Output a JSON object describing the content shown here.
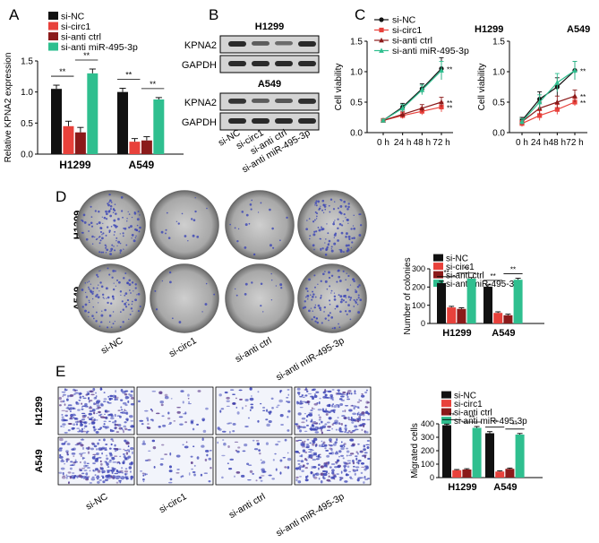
{
  "panel_labels": {
    "a": "A",
    "b": "B",
    "c": "C",
    "d": "D",
    "e": "E"
  },
  "significance": "**",
  "colors": {
    "si_nc": "#111111",
    "si_circ1": "#e8413b",
    "si_anti_ctrl": "#8b1a1a",
    "si_anti_mir": "#2fbf8f",
    "plate": "#9c9c9c",
    "plate_dark": "#6a6a6a",
    "blot_band": "#2a2a2a",
    "blot_bg": "#d4d4d4",
    "stain": "#3a43b5"
  },
  "legend": [
    "si-NC",
    "si-circ1",
    "si-anti ctrl",
    "si-anti miR-495-3p"
  ],
  "western": {
    "groups": [
      {
        "cell": "H1299",
        "rows": [
          "KPNA2",
          "GAPDH"
        ]
      },
      {
        "cell": "A549",
        "rows": [
          "KPNA2",
          "GAPDH"
        ]
      }
    ],
    "lanes": [
      "si-NC",
      "si-circ1",
      "si-anti ctrl",
      "si-anti miR-495-3p"
    ]
  },
  "colony_images": {
    "rows": [
      "H1299",
      "A549"
    ],
    "columns": [
      "si-NC",
      "si-circ1",
      "si-anti ctrl",
      "si-anti miR-495-3p"
    ],
    "density": [
      [
        0.9,
        0.12,
        0.15,
        0.85
      ],
      [
        0.8,
        0.08,
        0.1,
        0.8
      ]
    ]
  },
  "migration_images": {
    "rows": [
      "H1299",
      "A549"
    ],
    "columns": [
      "si-NC",
      "si-circ1",
      "si-anti ctrl",
      "si-anti miR-495-3p"
    ],
    "density": [
      [
        0.95,
        0.2,
        0.25,
        0.9
      ],
      [
        0.9,
        0.2,
        0.22,
        0.85
      ]
    ]
  },
  "chart_data": [
    {
      "id": "A",
      "type": "bar",
      "title": "",
      "xlabel": "",
      "ylabel": "Relative KPNA2 expression",
      "categories": [
        "H1299",
        "A549"
      ],
      "ylim": [
        0,
        1.5
      ],
      "yticks": [
        "0.0",
        "0.5",
        "1.0",
        "1.5"
      ],
      "ytick_values": [
        0,
        0.5,
        1.0,
        1.5
      ],
      "series": [
        {
          "name": "si-NC",
          "values": [
            1.05,
            1.0
          ],
          "errors": [
            0.06,
            0.06
          ]
        },
        {
          "name": "si-circ1",
          "values": [
            0.45,
            0.2
          ],
          "errors": [
            0.08,
            0.05
          ]
        },
        {
          "name": "si-anti ctrl",
          "values": [
            0.35,
            0.22
          ],
          "errors": [
            0.08,
            0.06
          ]
        },
        {
          "name": "si-anti miR-495-3p",
          "values": [
            1.3,
            0.88
          ],
          "errors": [
            0.07,
            0.03
          ]
        }
      ]
    },
    {
      "id": "C1",
      "type": "line",
      "title": "H1299",
      "xlabel": "",
      "ylabel": "Cell viability",
      "x": [
        "0 h",
        "24 h",
        "48 h",
        "72 h"
      ],
      "ylim": [
        0,
        1.5
      ],
      "yticks": [
        "0.0",
        "0.5",
        "1.0",
        "1.5"
      ],
      "ytick_values": [
        0,
        0.5,
        1.0,
        1.5
      ],
      "series": [
        {
          "name": "si-NC",
          "values": [
            0.2,
            0.42,
            0.72,
            1.05
          ],
          "errors": [
            0.02,
            0.06,
            0.08,
            0.18
          ]
        },
        {
          "name": "si-circ1",
          "values": [
            0.2,
            0.28,
            0.35,
            0.42
          ],
          "errors": [
            0.02,
            0.05,
            0.06,
            0.08
          ]
        },
        {
          "name": "si-anti ctrl",
          "values": [
            0.2,
            0.3,
            0.4,
            0.5
          ],
          "errors": [
            0.02,
            0.05,
            0.06,
            0.08
          ]
        },
        {
          "name": "si-anti miR-495-3p",
          "values": [
            0.2,
            0.4,
            0.7,
            1.02
          ],
          "errors": [
            0.02,
            0.06,
            0.08,
            0.15
          ]
        }
      ],
      "annotations": [
        "**",
        "**",
        "**"
      ]
    },
    {
      "id": "C2",
      "type": "line",
      "title": "A549",
      "xlabel": "",
      "ylabel": "Cell viability",
      "x": [
        "0 h",
        "24 h",
        "48 h",
        "72 h"
      ],
      "ylim": [
        0,
        1.5
      ],
      "yticks": [
        "0.0",
        "0.5",
        "1.0",
        "1.5"
      ],
      "ytick_values": [
        0,
        0.5,
        1.0,
        1.5
      ],
      "series": [
        {
          "name": "si-NC",
          "values": [
            0.2,
            0.55,
            0.75,
            1.02
          ],
          "errors": [
            0.05,
            0.12,
            0.15,
            0.15
          ]
        },
        {
          "name": "si-circ1",
          "values": [
            0.15,
            0.28,
            0.38,
            0.5
          ],
          "errors": [
            0.05,
            0.08,
            0.08,
            0.06
          ]
        },
        {
          "name": "si-anti ctrl",
          "values": [
            0.18,
            0.4,
            0.5,
            0.6
          ],
          "errors": [
            0.05,
            0.1,
            0.1,
            0.1
          ]
        },
        {
          "name": "si-anti miR-495-3p",
          "values": [
            0.18,
            0.5,
            0.82,
            1.02
          ],
          "errors": [
            0.05,
            0.12,
            0.15,
            0.15
          ]
        }
      ],
      "annotations": [
        "**",
        "**",
        "**"
      ]
    },
    {
      "id": "D",
      "type": "bar",
      "title": "",
      "xlabel": "",
      "ylabel": "Number of colonies",
      "categories": [
        "H1299",
        "A549"
      ],
      "ylim": [
        0,
        300
      ],
      "yticks": [
        "0",
        "100",
        "200",
        "300"
      ],
      "ytick_values": [
        0,
        100,
        200,
        300
      ],
      "series": [
        {
          "name": "si-NC",
          "values": [
            222,
            202
          ],
          "errors": [
            10,
            10
          ]
        },
        {
          "name": "si-circ1",
          "values": [
            88,
            58
          ],
          "errors": [
            6,
            6
          ]
        },
        {
          "name": "si-anti ctrl",
          "values": [
            80,
            45
          ],
          "errors": [
            6,
            6
          ]
        },
        {
          "name": "si-anti miR-495-3p",
          "values": [
            246,
            240
          ],
          "errors": [
            6,
            8
          ]
        }
      ]
    },
    {
      "id": "E",
      "type": "bar",
      "title": "",
      "xlabel": "",
      "ylabel": "Migrated cells",
      "categories": [
        "H1299",
        "A549"
      ],
      "ylim": [
        0,
        400
      ],
      "yticks": [
        "0",
        "100",
        "200",
        "300",
        "400"
      ],
      "ytick_values": [
        0,
        100,
        200,
        300,
        400
      ],
      "series": [
        {
          "name": "si-NC",
          "values": [
            390,
            330
          ],
          "errors": [
            8,
            12
          ]
        },
        {
          "name": "si-circ1",
          "values": [
            55,
            45
          ],
          "errors": [
            5,
            5
          ]
        },
        {
          "name": "si-anti ctrl",
          "values": [
            60,
            65
          ],
          "errors": [
            6,
            6
          ]
        },
        {
          "name": "si-anti miR-495-3p",
          "values": [
            370,
            320
          ],
          "errors": [
            10,
            8
          ]
        }
      ]
    }
  ]
}
